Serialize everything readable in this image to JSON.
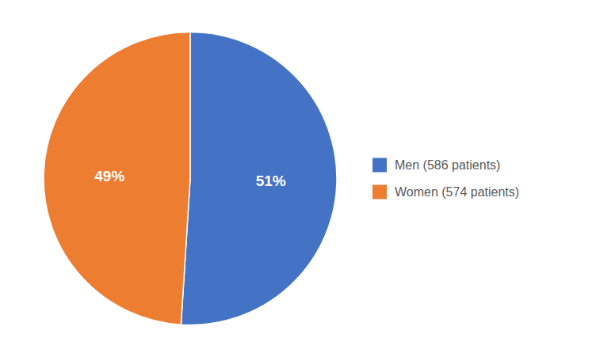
{
  "chart_data": {
    "type": "pie",
    "categories": [
      "Men (586 patients)",
      "Women (574 patients)"
    ],
    "values": [
      51,
      49
    ],
    "value_labels": [
      "51%",
      "49%"
    ],
    "colors": [
      "#4472C4",
      "#ED7D31"
    ],
    "data_labels": true,
    "legend": "right"
  }
}
